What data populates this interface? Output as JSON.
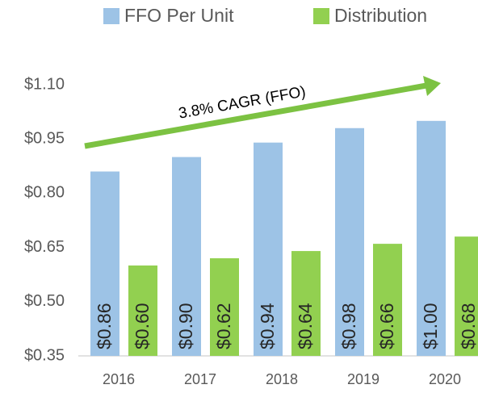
{
  "chart_data": {
    "type": "bar",
    "categories": [
      "2016",
      "2017",
      "2018",
      "2019",
      "2020"
    ],
    "series": [
      {
        "name": "FFO Per Unit",
        "color": "#9dc3e6",
        "values": [
          0.86,
          0.9,
          0.94,
          0.98,
          1.0
        ],
        "value_labels": [
          "$0.86",
          "$0.90",
          "$0.94",
          "$0.98",
          "$1.00"
        ]
      },
      {
        "name": "Distribution",
        "color": "#92d050",
        "values": [
          0.6,
          0.62,
          0.64,
          0.66,
          0.68
        ],
        "value_labels": [
          "$0.60",
          "$0.62",
          "$0.64",
          "$0.66",
          "$0.68"
        ]
      }
    ],
    "ylim": [
      0.35,
      1.1
    ],
    "yticks": [
      {
        "value": 0.35,
        "label": "$0.35"
      },
      {
        "value": 0.5,
        "label": "$0.50"
      },
      {
        "value": 0.65,
        "label": "$0.65"
      },
      {
        "value": 0.8,
        "label": "$0.80"
      },
      {
        "value": 0.95,
        "label": "$0.95"
      },
      {
        "value": 1.1,
        "label": "$1.10"
      }
    ],
    "grid": false,
    "legend": "top",
    "annotation": "3.8% CAGR (FFO)"
  }
}
